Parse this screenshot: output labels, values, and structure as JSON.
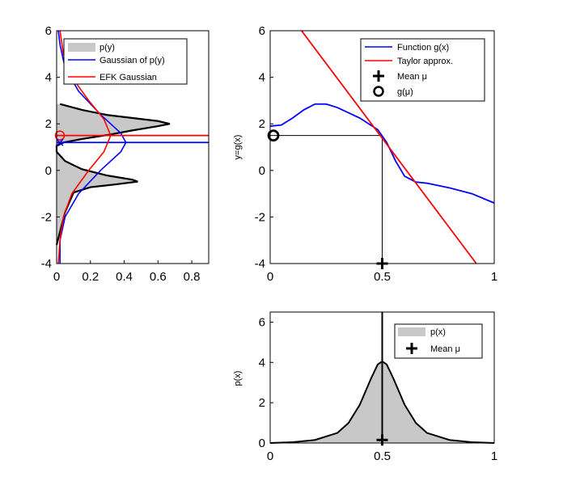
{
  "chart_data": [
    {
      "id": "py",
      "type": "area",
      "xlim": [
        0,
        0.9
      ],
      "ylim": [
        -4,
        6
      ],
      "xticks": [
        "0",
        "0.2",
        "0.4",
        "0.6",
        "0.8"
      ],
      "yticks": [
        "-4",
        "-2",
        "0",
        "2",
        "4",
        "6"
      ],
      "xlabel": "",
      "ylabel": "",
      "legend": {
        "position": "top-right",
        "entries": [
          "p(y)",
          "Gaussian of p(y)",
          "EFK Gaussian"
        ]
      },
      "series": [
        {
          "name": "p(y)",
          "color": "#c8c8c8",
          "edge": "#000000",
          "points": [
            [
              0,
              -3.2
            ],
            [
              0.05,
              -1.8
            ],
            [
              0.1,
              -0.95
            ],
            [
              0.2,
              -0.72
            ],
            [
              0.35,
              -0.6
            ],
            [
              0.48,
              -0.48
            ],
            [
              0.45,
              -0.4
            ],
            [
              0.3,
              -0.22
            ],
            [
              0.15,
              0.05
            ],
            [
              0.05,
              0.4
            ],
            [
              0.0,
              0.8
            ],
            [
              0.0,
              1.05
            ],
            [
              0.04,
              1.2
            ],
            [
              0.15,
              1.35
            ],
            [
              0.3,
              1.52
            ],
            [
              0.45,
              1.72
            ],
            [
              0.6,
              1.9
            ],
            [
              0.67,
              2.0
            ],
            [
              0.6,
              2.12
            ],
            [
              0.45,
              2.25
            ],
            [
              0.3,
              2.38
            ],
            [
              0.15,
              2.6
            ],
            [
              0.02,
              2.85
            ]
          ]
        },
        {
          "name": "Gaussian of p(y)",
          "color": "#0000ff",
          "mean": 1.2,
          "points": [
            [
              0.02,
              -4
            ],
            [
              0.02,
              -3
            ],
            [
              0.05,
              -2
            ],
            [
              0.13,
              -1
            ],
            [
              0.26,
              0
            ],
            [
              0.38,
              0.8
            ],
            [
              0.41,
              1.2
            ],
            [
              0.38,
              1.6
            ],
            [
              0.26,
              2.4
            ],
            [
              0.13,
              3.4
            ],
            [
              0.05,
              4.4
            ],
            [
              0.02,
              5.4
            ],
            [
              0.01,
              6
            ]
          ]
        },
        {
          "name": "EFK Gaussian",
          "color": "#ff0000",
          "mean": 1.5,
          "points": [
            [
              0.01,
              -4
            ],
            [
              0.02,
              -3
            ],
            [
              0.04,
              -2
            ],
            [
              0.09,
              -1
            ],
            [
              0.19,
              0
            ],
            [
              0.28,
              0.8
            ],
            [
              0.32,
              1.5
            ],
            [
              0.28,
              2.2
            ],
            [
              0.19,
              3
            ],
            [
              0.09,
              4
            ],
            [
              0.04,
              5
            ],
            [
              0.02,
              6
            ]
          ]
        }
      ],
      "markers": [
        {
          "name": "g(mean)",
          "x": 0.0,
          "y": 1.5,
          "color": "#ff0000"
        },
        {
          "name": "Gaussian mean",
          "x": 0.0,
          "y": 1.2,
          "color": "#0000ff"
        }
      ]
    },
    {
      "id": "gx",
      "type": "line",
      "xlim": [
        0,
        1
      ],
      "ylim": [
        -4,
        6
      ],
      "xticks": [
        "0",
        "0.5",
        "1"
      ],
      "yticks": [
        "-4",
        "-2",
        "0",
        "2",
        "4",
        "6"
      ],
      "xlabel": "",
      "ylabel": "y=g(x)",
      "legend": {
        "position": "top-right",
        "entries": [
          "Function g(x)",
          "Taylor approx.",
          "Mean μ",
          "g(μ)"
        ]
      },
      "series": [
        {
          "name": "Function g(x)",
          "color": "#0000ff",
          "points": [
            [
              0,
              1.9
            ],
            [
              0.05,
              1.95
            ],
            [
              0.1,
              2.25
            ],
            [
              0.15,
              2.6
            ],
            [
              0.2,
              2.85
            ],
            [
              0.25,
              2.85
            ],
            [
              0.3,
              2.7
            ],
            [
              0.4,
              2.25
            ],
            [
              0.48,
              1.75
            ],
            [
              0.52,
              1.2
            ],
            [
              0.56,
              0.4
            ],
            [
              0.6,
              -0.25
            ],
            [
              0.65,
              -0.5
            ],
            [
              0.7,
              -0.55
            ],
            [
              0.8,
              -0.75
            ],
            [
              0.9,
              -1.0
            ],
            [
              1.0,
              -1.4
            ]
          ]
        },
        {
          "name": "Taylor approx.",
          "color": "#ff0000",
          "points": [
            [
              0.14,
              6
            ],
            [
              0.92,
              -4
            ]
          ]
        }
      ],
      "mean": {
        "x": 0.5,
        "y": 1.5
      },
      "mean_marker": {
        "x": 0.5,
        "y": -4
      },
      "g_marker": {
        "x": 0.0,
        "y": 1.5
      }
    },
    {
      "id": "px",
      "type": "area",
      "xlim": [
        0,
        1
      ],
      "ylim": [
        0,
        6.5
      ],
      "xticks": [
        "0",
        "0.5",
        "1"
      ],
      "yticks": [
        "0",
        "2",
        "4",
        "6"
      ],
      "xlabel": "",
      "ylabel": "p(x)",
      "legend": {
        "position": "top-right",
        "entries": [
          "p(x)",
          "Mean μ"
        ]
      },
      "series": [
        {
          "name": "p(x)",
          "color": "#c8c8c8",
          "edge": "#000000",
          "points": [
            [
              0,
              0
            ],
            [
              0.1,
              0.04
            ],
            [
              0.2,
              0.15
            ],
            [
              0.3,
              0.5
            ],
            [
              0.35,
              1.0
            ],
            [
              0.4,
              1.9
            ],
            [
              0.45,
              3.2
            ],
            [
              0.48,
              3.9
            ],
            [
              0.5,
              4.05
            ],
            [
              0.52,
              3.9
            ],
            [
              0.55,
              3.2
            ],
            [
              0.6,
              1.9
            ],
            [
              0.65,
              1.0
            ],
            [
              0.7,
              0.5
            ],
            [
              0.8,
              0.15
            ],
            [
              0.9,
              0.04
            ],
            [
              1.0,
              0
            ]
          ]
        }
      ],
      "mean_marker": {
        "x": 0.5,
        "y": 0.15
      }
    }
  ]
}
